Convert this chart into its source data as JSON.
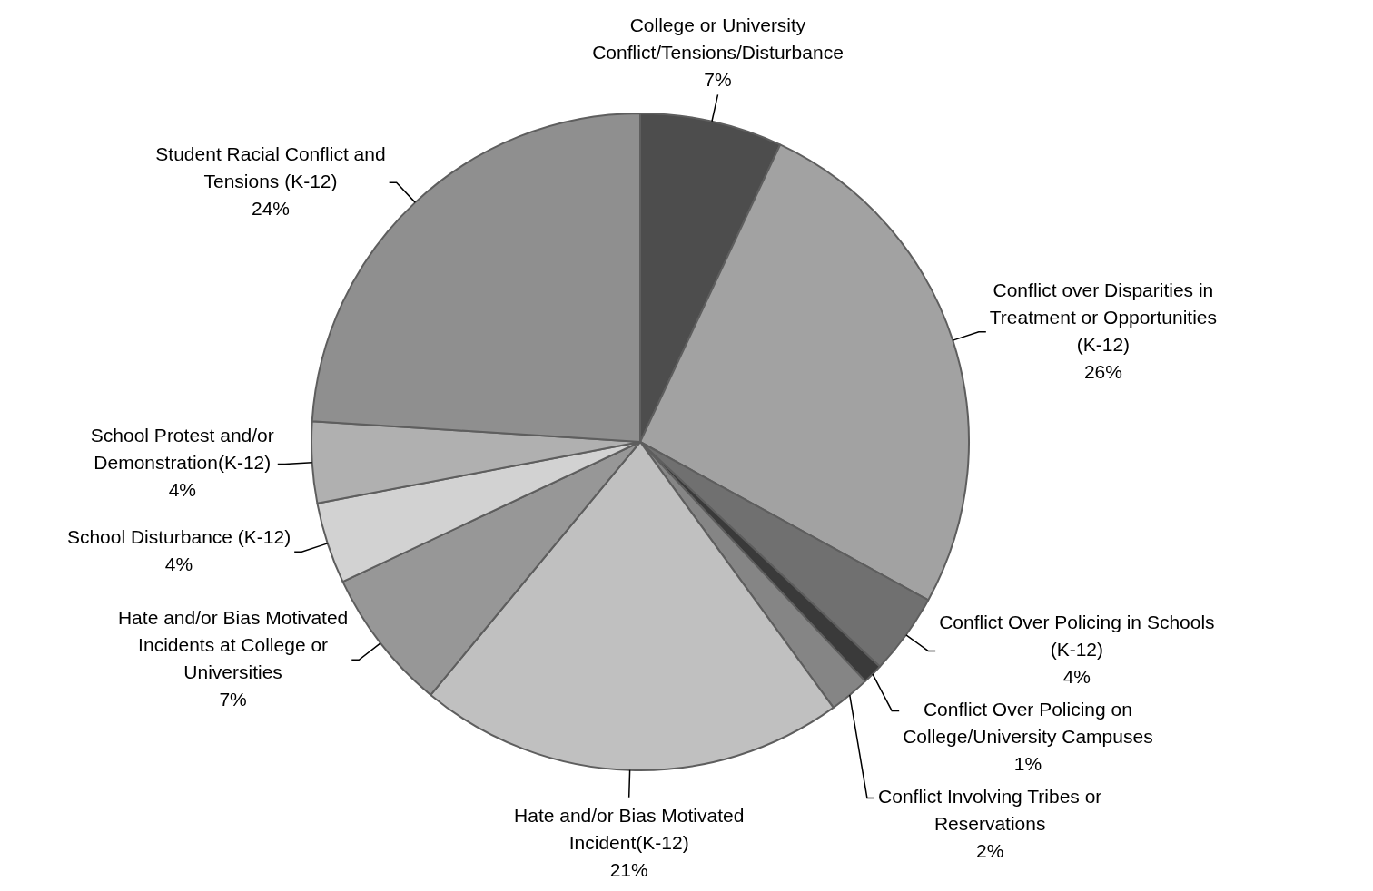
{
  "chart_data": {
    "type": "pie",
    "categories": [
      "College or University Conflict/Tensions/Disturbance",
      "Conflict over Disparities in Treatment or Opportunities (K-12)",
      "Conflict Over Policing in Schools (K-12)",
      "Conflict Over Policing on College/University Campuses",
      "Conflict Involving Tribes or Reservations",
      "Hate and/or Bias Motivated Incident(K-12)",
      "Hate and/or Bias Motivated Incidents at College or Universities",
      "School Disturbance (K-12)",
      "School Protest and/or Demonstration(K-12)",
      "Student Racial Conflict and Tensions (K-12)"
    ],
    "values": [
      7,
      26,
      4,
      1,
      2,
      21,
      7,
      4,
      4,
      24
    ],
    "value_labels": [
      "7%",
      "26%",
      "4%",
      "1%",
      "2%",
      "21%",
      "7%",
      "4%",
      "4%",
      "24%"
    ],
    "colors": [
      "#4d4d4d",
      "#a2a2a2",
      "#707070",
      "#3a3a3a",
      "#858585",
      "#c0c0c0",
      "#979797",
      "#d2d2d2",
      "#b0b0b0",
      "#8f8f8f"
    ],
    "legend": false
  }
}
